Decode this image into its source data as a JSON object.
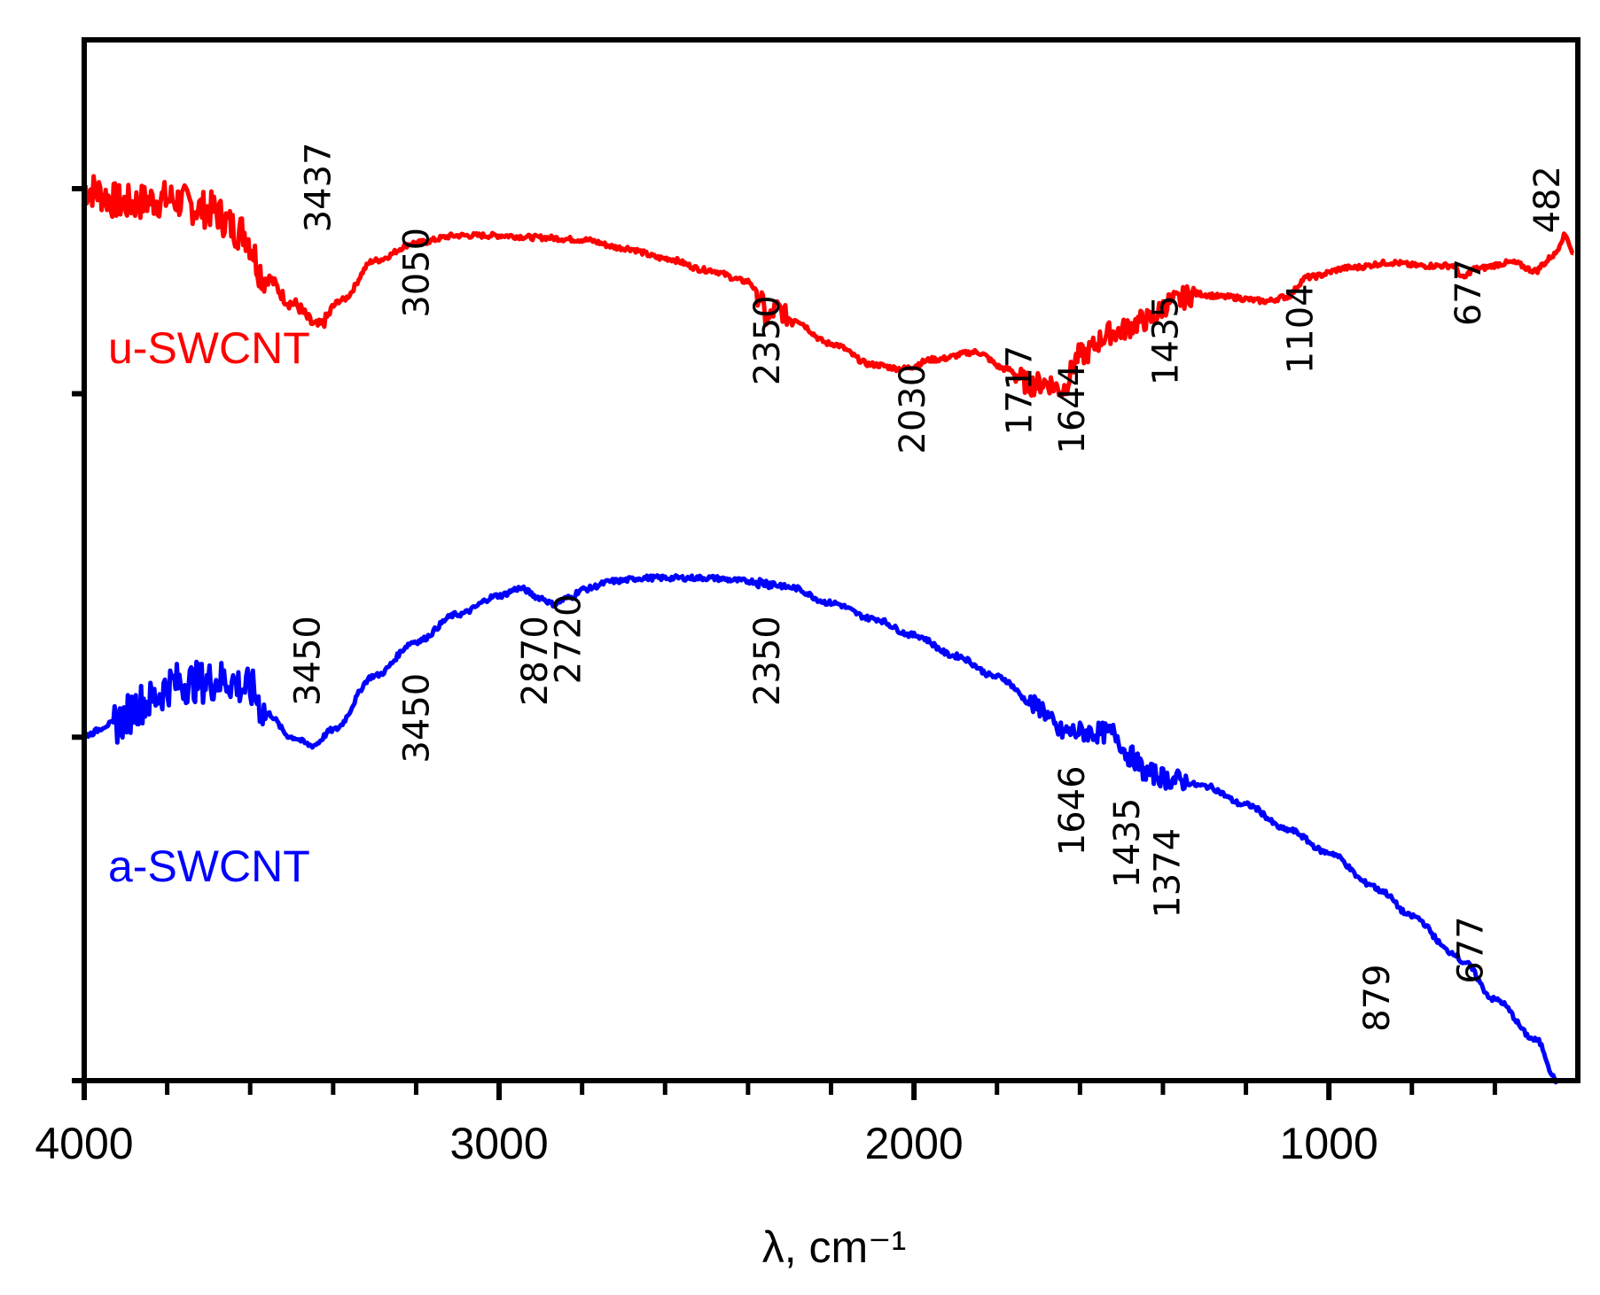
{
  "chart_data": {
    "type": "line",
    "title": "",
    "xlabel": "λ, cm⁻¹",
    "ylabel": "",
    "xlim": [
      4000,
      400
    ],
    "xticks": [
      4000,
      3000,
      2000,
      1000
    ],
    "xtick_labels": [
      "4000",
      "3000",
      "2000",
      "1000"
    ],
    "minor_xticks": [
      3800,
      3600,
      3400,
      3200,
      2800,
      2600,
      2400,
      2200,
      1800,
      1600,
      1400,
      1200,
      800,
      600
    ],
    "ylim": [
      0,
      100
    ],
    "yticks": [
      33,
      66
    ],
    "grid": false,
    "series": [
      {
        "name": "u-SWCNT",
        "label": "u-SWCNT",
        "color": "#ff0000",
        "x": [
          4000,
          3900,
          3800,
          3700,
          3620,
          3560,
          3500,
          3437,
          3380,
          3300,
          3200,
          3100,
          3000,
          2900,
          2800,
          2700,
          2600,
          2500,
          2400,
          2370,
          2355,
          2330,
          2300,
          2200,
          2100,
          2030,
          1950,
          1850,
          1780,
          1717,
          1680,
          1644,
          1600,
          1520,
          1435,
          1380,
          1320,
          1250,
          1150,
          1104,
          1050,
          950,
          850,
          780,
          700,
          677,
          650,
          560,
          500,
          482,
          460,
          430,
          410
        ],
        "y": [
          85.7,
          84.3,
          84.7,
          83.7,
          81.6,
          77.1,
          74.7,
          72.5,
          75.0,
          78.8,
          80.5,
          81.2,
          81.2,
          81.0,
          80.8,
          80.0,
          79.0,
          77.9,
          76.8,
          75.3,
          73.0,
          74.2,
          73.3,
          70.8,
          68.8,
          68.4,
          69.3,
          70.0,
          68.4,
          66.9,
          67.1,
          66.4,
          69.7,
          71.9,
          73.1,
          74.8,
          75.6,
          75.3,
          74.9,
          75.3,
          77.2,
          78.1,
          78.6,
          78.3,
          78.3,
          77.1,
          78.0,
          78.6,
          77.8,
          78.5,
          79.3,
          81.2,
          79.5
        ],
        "peak_labels": [
          "3437",
          "3050",
          "2350",
          "2030",
          "1717",
          "1644",
          "1435",
          "1104",
          "677",
          "482"
        ]
      },
      {
        "name": "a-SWCNT",
        "label": "a-SWCNT",
        "color": "#0000ff",
        "x": [
          4000,
          3930,
          3850,
          3780,
          3720,
          3660,
          3600,
          3560,
          3500,
          3450,
          3400,
          3300,
          3200,
          3100,
          3000,
          2950,
          2900,
          2870,
          2830,
          2800,
          2720,
          2650,
          2600,
          2500,
          2400,
          2350,
          2300,
          2200,
          2100,
          2000,
          1900,
          1800,
          1700,
          1646,
          1600,
          1520,
          1480,
          1435,
          1374,
          1300,
          1200,
          1100,
          1000,
          900,
          879,
          800,
          700,
          677,
          600,
          500,
          450
        ],
        "y": [
          33.2,
          34.3,
          36.4,
          38.2,
          38.3,
          38.5,
          37.6,
          35.3,
          33.0,
          32.2,
          33.7,
          38.9,
          42.2,
          44.8,
          46.6,
          47.3,
          46.4,
          45.8,
          46.4,
          47.2,
          48.0,
          48.3,
          48.3,
          48.3,
          48.0,
          47.8,
          47.4,
          45.9,
          44.4,
          42.8,
          40.8,
          38.8,
          35.9,
          33.5,
          33.5,
          33.4,
          31.2,
          29.5,
          28.9,
          28.3,
          26.5,
          24.1,
          21.9,
          18.9,
          18.3,
          15.8,
          12.3,
          11.4,
          7.8,
          3.9,
          0.0
        ],
        "peak_labels": [
          "3450",
          "3450",
          "2870",
          "2720",
          "2350",
          "1646",
          "1435",
          "1374",
          "879",
          "677"
        ]
      }
    ],
    "annotations": [
      {
        "text": "3437",
        "x": 3437,
        "y": 81.5,
        "series": "u-SWCNT"
      },
      {
        "text": "3050",
        "x": 3200,
        "y": 73.3,
        "series": "u-SWCNT"
      },
      {
        "text": "2350",
        "x": 2355,
        "y": 66.8,
        "series": "u-SWCNT"
      },
      {
        "text": "2030",
        "x": 2005,
        "y": 60.2,
        "series": "u-SWCNT"
      },
      {
        "text": "1717",
        "x": 1747,
        "y": 62.0,
        "series": "u-SWCNT"
      },
      {
        "text": "1644",
        "x": 1620,
        "y": 60.2,
        "series": "u-SWCNT"
      },
      {
        "text": "1435",
        "x": 1395,
        "y": 66.8,
        "series": "u-SWCNT"
      },
      {
        "text": "1104",
        "x": 1070,
        "y": 67.9,
        "series": "u-SWCNT"
      },
      {
        "text": "677",
        "x": 665,
        "y": 72.5,
        "series": "u-SWCNT"
      },
      {
        "text": "482",
        "x": 475,
        "y": 81.4,
        "series": "u-SWCNT"
      },
      {
        "text": "3450",
        "x": 3463,
        "y": 36.0,
        "series": "a-SWCNT"
      },
      {
        "text": "3450",
        "x": 3200,
        "y": 30.5,
        "series": "a-SWCNT"
      },
      {
        "text": "2870",
        "x": 2915,
        "y": 36.0,
        "series": "a-SWCNT"
      },
      {
        "text": "2720",
        "x": 2835,
        "y": 38.1,
        "series": "a-SWCNT"
      },
      {
        "text": "2350",
        "x": 2355,
        "y": 36.0,
        "series": "a-SWCNT"
      },
      {
        "text": "1646",
        "x": 1620,
        "y": 21.6,
        "series": "a-SWCNT"
      },
      {
        "text": "1435",
        "x": 1487,
        "y": 18.5,
        "series": "a-SWCNT"
      },
      {
        "text": "1374",
        "x": 1390,
        "y": 15.6,
        "series": "a-SWCNT"
      },
      {
        "text": "879",
        "x": 885,
        "y": 4.7,
        "series": "a-SWCNT"
      },
      {
        "text": "677",
        "x": 660,
        "y": 9.3,
        "series": "a-SWCNT"
      }
    ],
    "legend": "inline labels left of each curve"
  }
}
